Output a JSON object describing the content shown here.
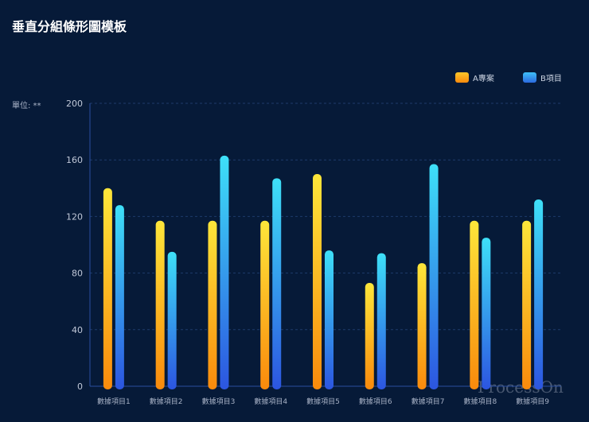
{
  "chart_data": {
    "type": "bar",
    "title": "垂直分組條形圖模板",
    "unit_label": "單位: **",
    "categories": [
      "數據項目1",
      "數據項目2",
      "數據項目3",
      "數據項目4",
      "數據項目5",
      "數據項目6",
      "數據項目7",
      "數據項目8",
      "數據項目9"
    ],
    "series": [
      {
        "name": "A專案",
        "values": [
          140,
          117,
          117,
          117,
          150,
          73,
          87,
          117,
          117
        ],
        "color_top": "#fde63a",
        "color_bottom": "#f98a0c"
      },
      {
        "name": "B項目",
        "values": [
          128,
          95,
          163,
          147,
          96,
          94,
          157,
          105,
          132
        ],
        "color_top": "#3ee0f8",
        "color_bottom": "#2c55e0"
      }
    ],
    "ylim": [
      0,
      200
    ],
    "yticks": [
      0,
      40,
      80,
      120,
      160,
      200
    ],
    "grid": true,
    "legend": "top-right"
  },
  "watermark": "ProcessOn"
}
